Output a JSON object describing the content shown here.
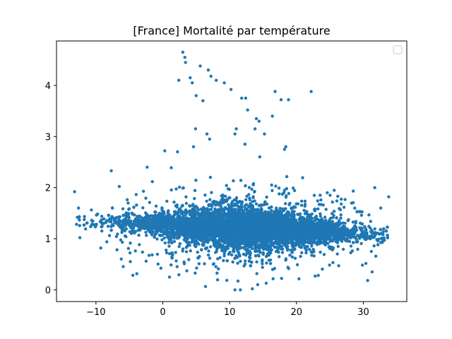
{
  "chart_data": {
    "type": "scatter",
    "title": "[France] Mortalité par température",
    "xlabel": "",
    "ylabel": "",
    "xlim": [
      -15.9,
      36.5
    ],
    "ylim": [
      -0.23,
      4.87
    ],
    "xticks": [
      -10,
      0,
      10,
      20,
      30
    ],
    "yticks": [
      0,
      1,
      2,
      3,
      4
    ],
    "xtick_labels": [
      "−10",
      "0",
      "10",
      "20",
      "30"
    ],
    "ytick_labels": [
      "0",
      "1",
      "2",
      "3",
      "4"
    ],
    "grid": false,
    "legend": {
      "placement": "top-right",
      "entries": []
    },
    "series_color": "#1f77b4",
    "cluster": {
      "x_range": [
        -13,
        34
      ],
      "core_x_range": [
        -5,
        30
      ],
      "y_center": 1.2,
      "y_spread": [
        0.3,
        2.2
      ],
      "approx_point_count": 20000
    },
    "outliers": [
      {
        "x": 3.0,
        "y": 4.65
      },
      {
        "x": 3.3,
        "y": 4.55
      },
      {
        "x": 3.4,
        "y": 4.45
      },
      {
        "x": 5.6,
        "y": 4.38
      },
      {
        "x": 6.8,
        "y": 4.3
      },
      {
        "x": 7.2,
        "y": 4.18
      },
      {
        "x": 8.0,
        "y": 4.1
      },
      {
        "x": 9.2,
        "y": 4.05
      },
      {
        "x": 10.2,
        "y": 3.92
      },
      {
        "x": 4.1,
        "y": 4.15
      },
      {
        "x": 2.4,
        "y": 4.1
      },
      {
        "x": 4.4,
        "y": 4.05
      },
      {
        "x": 5.0,
        "y": 3.8
      },
      {
        "x": 6.0,
        "y": 3.7
      },
      {
        "x": 11.8,
        "y": 3.75
      },
      {
        "x": 12.4,
        "y": 3.75
      },
      {
        "x": 16.8,
        "y": 3.88
      },
      {
        "x": 17.7,
        "y": 3.72
      },
      {
        "x": 18.8,
        "y": 3.72
      },
      {
        "x": 22.2,
        "y": 3.88
      },
      {
        "x": 12.7,
        "y": 3.52
      },
      {
        "x": 14.0,
        "y": 3.35
      },
      {
        "x": 14.4,
        "y": 3.3
      },
      {
        "x": 16.4,
        "y": 3.4
      },
      {
        "x": 13.8,
        "y": 3.15
      },
      {
        "x": 11.0,
        "y": 3.15
      },
      {
        "x": 6.6,
        "y": 3.05
      },
      {
        "x": 4.9,
        "y": 3.15
      },
      {
        "x": 10.8,
        "y": 3.05
      },
      {
        "x": 7.0,
        "y": 2.95
      },
      {
        "x": 12.3,
        "y": 2.85
      },
      {
        "x": 15.2,
        "y": 3.05
      },
      {
        "x": 18.4,
        "y": 2.8
      },
      {
        "x": 18.2,
        "y": 2.75
      },
      {
        "x": 4.6,
        "y": 2.8
      },
      {
        "x": 2.2,
        "y": 2.7
      },
      {
        "x": 0.3,
        "y": 2.72
      },
      {
        "x": 14.5,
        "y": 2.6
      },
      {
        "x": -7.7,
        "y": 2.33
      },
      {
        "x": -13.2,
        "y": 1.92
      },
      {
        "x": -12.6,
        "y": 1.6
      },
      {
        "x": -12.9,
        "y": 1.28
      },
      {
        "x": -12.4,
        "y": 1.02
      },
      {
        "x": 33.8,
        "y": 1.82
      },
      {
        "x": 31.7,
        "y": 2.0
      },
      {
        "x": 32.6,
        "y": 1.6
      },
      {
        "x": 31.2,
        "y": 0.75
      },
      {
        "x": 10.8,
        "y": 0.0
      },
      {
        "x": 11.6,
        "y": 0.0
      },
      {
        "x": 13.4,
        "y": 0.02
      },
      {
        "x": 1.0,
        "y": 0.25
      },
      {
        "x": 14.2,
        "y": 0.1
      }
    ]
  }
}
